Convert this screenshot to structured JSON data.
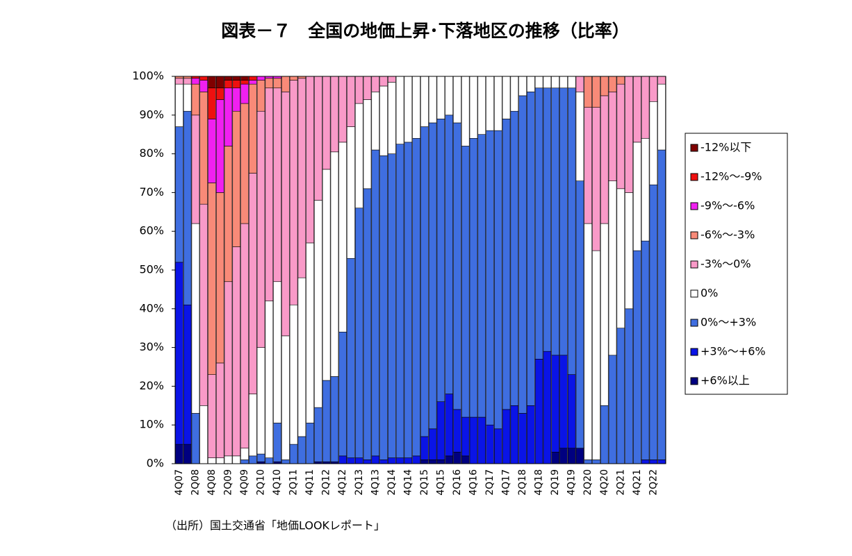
{
  "chart_data": {
    "type": "stacked-bar",
    "title": "図表－７　全国の地価上昇･下落地区の推移（比率）",
    "source": "（出所）国土交通省「地価LOOKレポート」",
    "categories": [
      "4Q07",
      null,
      "2Q08",
      null,
      "4Q08",
      null,
      "2Q09",
      null,
      "4Q09",
      null,
      "2Q10",
      null,
      "4Q10",
      null,
      "2Q11",
      null,
      "4Q11",
      null,
      "2Q12",
      null,
      "4Q12",
      null,
      "2Q13",
      null,
      "4Q13",
      null,
      "2Q14",
      null,
      "4Q14",
      null,
      "2Q15",
      null,
      "4Q15",
      null,
      "2Q16",
      null,
      "4Q16",
      null,
      "2Q17",
      null,
      "4Q17",
      null,
      "2Q18",
      null,
      "4Q18",
      null,
      "2Q19",
      null,
      "4Q19",
      null,
      "2Q20",
      null,
      "4Q20",
      null,
      "2Q21",
      null,
      "4Q21",
      null,
      "2Q22",
      null
    ],
    "ylim": [
      0,
      100
    ],
    "yticks": [
      {
        "value": 0,
        "label": "0%"
      },
      {
        "value": 10,
        "label": "10%"
      },
      {
        "value": 20,
        "label": "20%"
      },
      {
        "value": 30,
        "label": "30%"
      },
      {
        "value": 40,
        "label": "40%"
      },
      {
        "value": 50,
        "label": "50%"
      },
      {
        "value": 60,
        "label": "60%"
      },
      {
        "value": 70,
        "label": "70%"
      },
      {
        "value": 80,
        "label": "80%"
      },
      {
        "value": 90,
        "label": "90%"
      },
      {
        "value": 100,
        "label": "100%"
      }
    ],
    "legend": "right",
    "series": [
      {
        "name": "+6%以上",
        "color": "#000080",
        "values": [
          5,
          5,
          0,
          0,
          0,
          0,
          0,
          0,
          0,
          0,
          0.5,
          0,
          0.5,
          0,
          0,
          0,
          0,
          0.5,
          0.5,
          0.5,
          0,
          0,
          0,
          0,
          0,
          0,
          0,
          0,
          0,
          0,
          1,
          1,
          1,
          2,
          3,
          2,
          0,
          0,
          0,
          0,
          0,
          0,
          0,
          0,
          0,
          0,
          3,
          4,
          4,
          4,
          0,
          0,
          0,
          0,
          0,
          0,
          0,
          0,
          0,
          0
        ]
      },
      {
        "name": "+3%～+6%",
        "color": "#0a14e6",
        "values": [
          47,
          36,
          0,
          0,
          0,
          0,
          0,
          0,
          0,
          0,
          0,
          0,
          0,
          0,
          0,
          0,
          0,
          0,
          0,
          0,
          2,
          1.5,
          1.5,
          1,
          2,
          1,
          1.5,
          1.5,
          1.5,
          2,
          6,
          8,
          15,
          16,
          11,
          10,
          12,
          12,
          10,
          9,
          14,
          15,
          13,
          15,
          27,
          29,
          25,
          24,
          19,
          0,
          0,
          0,
          0,
          0,
          0,
          0,
          0,
          1,
          1,
          1
        ]
      },
      {
        "name": "0%～+3%",
        "color": "#3f6ee0",
        "values": [
          35,
          50,
          13,
          0,
          0,
          0,
          0,
          0,
          1,
          2,
          2,
          1.5,
          10,
          1,
          5,
          7,
          10.5,
          14,
          21,
          22,
          32,
          51.5,
          64.5,
          70,
          79,
          78.5,
          78.5,
          81,
          81.5,
          82,
          80,
          79,
          73,
          72,
          74,
          70,
          72,
          73,
          76,
          77,
          75,
          76,
          82,
          81,
          70,
          68,
          69,
          69,
          74,
          69,
          1,
          1,
          15,
          28,
          35,
          40,
          55,
          56.5,
          71,
          80
        ]
      },
      {
        "name": "0%",
        "color": "#ffffff",
        "values": [
          11,
          7,
          49,
          15,
          1.5,
          1.5,
          2,
          2,
          3,
          16,
          27.5,
          40.5,
          36.5,
          32,
          36,
          41,
          46.5,
          53.5,
          54.5,
          58,
          49,
          34,
          27,
          23,
          15,
          18,
          18.5,
          17.5,
          17,
          16,
          13,
          12,
          11,
          10,
          12,
          18,
          16,
          15,
          14,
          14,
          11,
          9,
          5,
          4,
          3,
          3,
          3,
          3,
          3,
          23,
          61,
          54,
          47,
          45,
          36,
          30,
          28,
          26.5,
          21.5,
          17
        ]
      },
      {
        "name": "-3%～0%",
        "color": "#f99ac8",
        "values": [
          1.5,
          1.5,
          28,
          52,
          21.5,
          24.5,
          45,
          54,
          58,
          57,
          61,
          55,
          50,
          63,
          58,
          51.5,
          43,
          32,
          24,
          19.5,
          17,
          13,
          7,
          6,
          4,
          2.5,
          1.5,
          0,
          0,
          0,
          0,
          0,
          0,
          0,
          0,
          0,
          0,
          0,
          0,
          0,
          0,
          0,
          0,
          0,
          0,
          0,
          0,
          0,
          0,
          4,
          30,
          37,
          33,
          23,
          27,
          30,
          17,
          16,
          6.5,
          2
        ]
      },
      {
        "name": "-6%～-3%",
        "color": "#f88a78",
        "values": [
          0.5,
          0.5,
          8,
          29,
          49.5,
          44,
          35,
          35,
          31,
          23,
          8,
          2.5,
          2.5,
          4,
          1,
          0.5,
          0,
          0,
          0,
          0,
          0,
          0,
          0,
          0,
          0,
          0,
          0,
          0,
          0,
          0,
          0,
          0,
          0,
          0,
          0,
          0,
          0,
          0,
          0,
          0,
          0,
          0,
          0,
          0,
          0,
          0,
          0,
          0,
          0,
          0,
          8,
          8,
          5,
          4,
          2,
          0,
          0,
          0,
          0,
          0
        ]
      },
      {
        "name": "-9%～-6%",
        "color": "#f020f0",
        "values": [
          0,
          0,
          1.5,
          3,
          16.5,
          24,
          15,
          6,
          5,
          1,
          1,
          0.5,
          0.5,
          0,
          0,
          0,
          0,
          0,
          0,
          0,
          0,
          0,
          0,
          0,
          0,
          0,
          0,
          0,
          0,
          0,
          0,
          0,
          0,
          0,
          0,
          0,
          0,
          0,
          0,
          0,
          0,
          0,
          0,
          0,
          0,
          0,
          0,
          0,
          0,
          0,
          0,
          0,
          0,
          0,
          0,
          0,
          0,
          0,
          0,
          0
        ]
      },
      {
        "name": "-12%～-9%",
        "color": "#ee1010",
        "values": [
          0,
          0,
          0.5,
          1,
          8,
          3,
          2,
          2,
          1,
          1,
          0,
          0,
          0,
          0,
          0,
          0,
          0,
          0,
          0,
          0,
          0,
          0,
          0,
          0,
          0,
          0,
          0,
          0,
          0,
          0,
          0,
          0,
          0,
          0,
          0,
          0,
          0,
          0,
          0,
          0,
          0,
          0,
          0,
          0,
          0,
          0,
          0,
          0,
          0,
          0,
          0,
          0,
          0,
          0,
          0,
          0,
          0,
          0,
          0,
          0
        ]
      },
      {
        "name": "-12%以下",
        "color": "#800000",
        "values": [
          0,
          0,
          0,
          0,
          3,
          3,
          1,
          1,
          1,
          0,
          0,
          0,
          0,
          0,
          0,
          0,
          0,
          0,
          0,
          0,
          0,
          0,
          0,
          0,
          0,
          0,
          0,
          0,
          0,
          0,
          0,
          0,
          0,
          0,
          0,
          0,
          0,
          0,
          0,
          0,
          0,
          0,
          0,
          0,
          0,
          0,
          0,
          0,
          0,
          0,
          0,
          0,
          0,
          0,
          0,
          0,
          0,
          0,
          0,
          0
        ]
      }
    ]
  }
}
